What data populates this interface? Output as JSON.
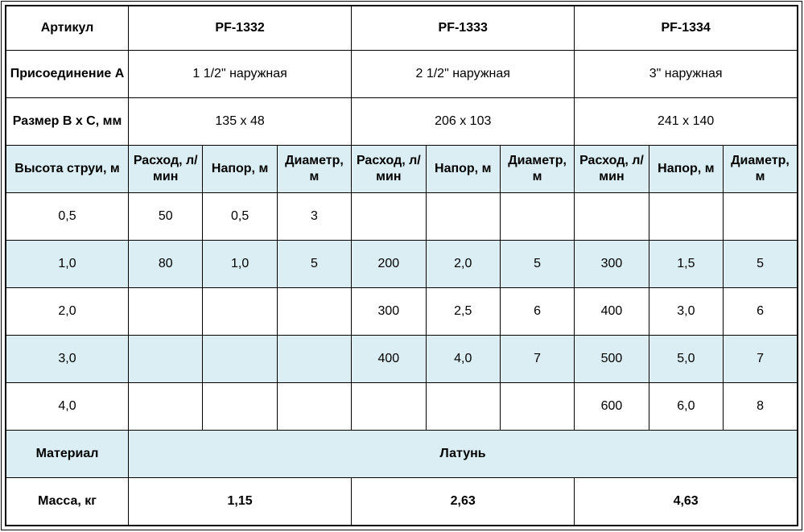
{
  "colors": {
    "accent_blue": "#1F3A93",
    "row_highlight": "#DAEEF3",
    "border": "#000000"
  },
  "table": {
    "article_label": "Артикул",
    "articles": [
      "PF-1332",
      "PF-1333",
      "PF-1334"
    ],
    "connection_label": "Присоединение А",
    "connections": [
      "1 1/2\" наружная",
      "2 1/2\" наружная",
      "3\" наружная"
    ],
    "size_label": "Размер B x C, мм",
    "sizes": [
      "135 x 48",
      "206 x 103",
      "241 x 140"
    ],
    "jet_height_label": "Высота струи, м",
    "sub_headers": [
      "Расход, л/мин",
      "Напор, м",
      "Диаметр, м"
    ],
    "data_rows": [
      {
        "height": "0,5",
        "values": [
          "50",
          "0,5",
          "3",
          "",
          "",
          "",
          "",
          "",
          ""
        ]
      },
      {
        "height": "1,0",
        "values": [
          "80",
          "1,0",
          "5",
          "200",
          "2,0",
          "5",
          "300",
          "1,5",
          "5"
        ]
      },
      {
        "height": "2,0",
        "values": [
          "",
          "",
          "",
          "300",
          "2,5",
          "6",
          "400",
          "3,0",
          "6"
        ]
      },
      {
        "height": "3,0",
        "values": [
          "",
          "",
          "",
          "400",
          "4,0",
          "7",
          "500",
          "5,0",
          "7"
        ]
      },
      {
        "height": "4,0",
        "values": [
          "",
          "",
          "",
          "",
          "",
          "",
          "600",
          "6,0",
          "8"
        ]
      }
    ],
    "material_label": "Материал",
    "material_value": "Латунь",
    "mass_label": "Масса, кг",
    "masses": [
      "1,15",
      "2,63",
      "4,63"
    ]
  }
}
